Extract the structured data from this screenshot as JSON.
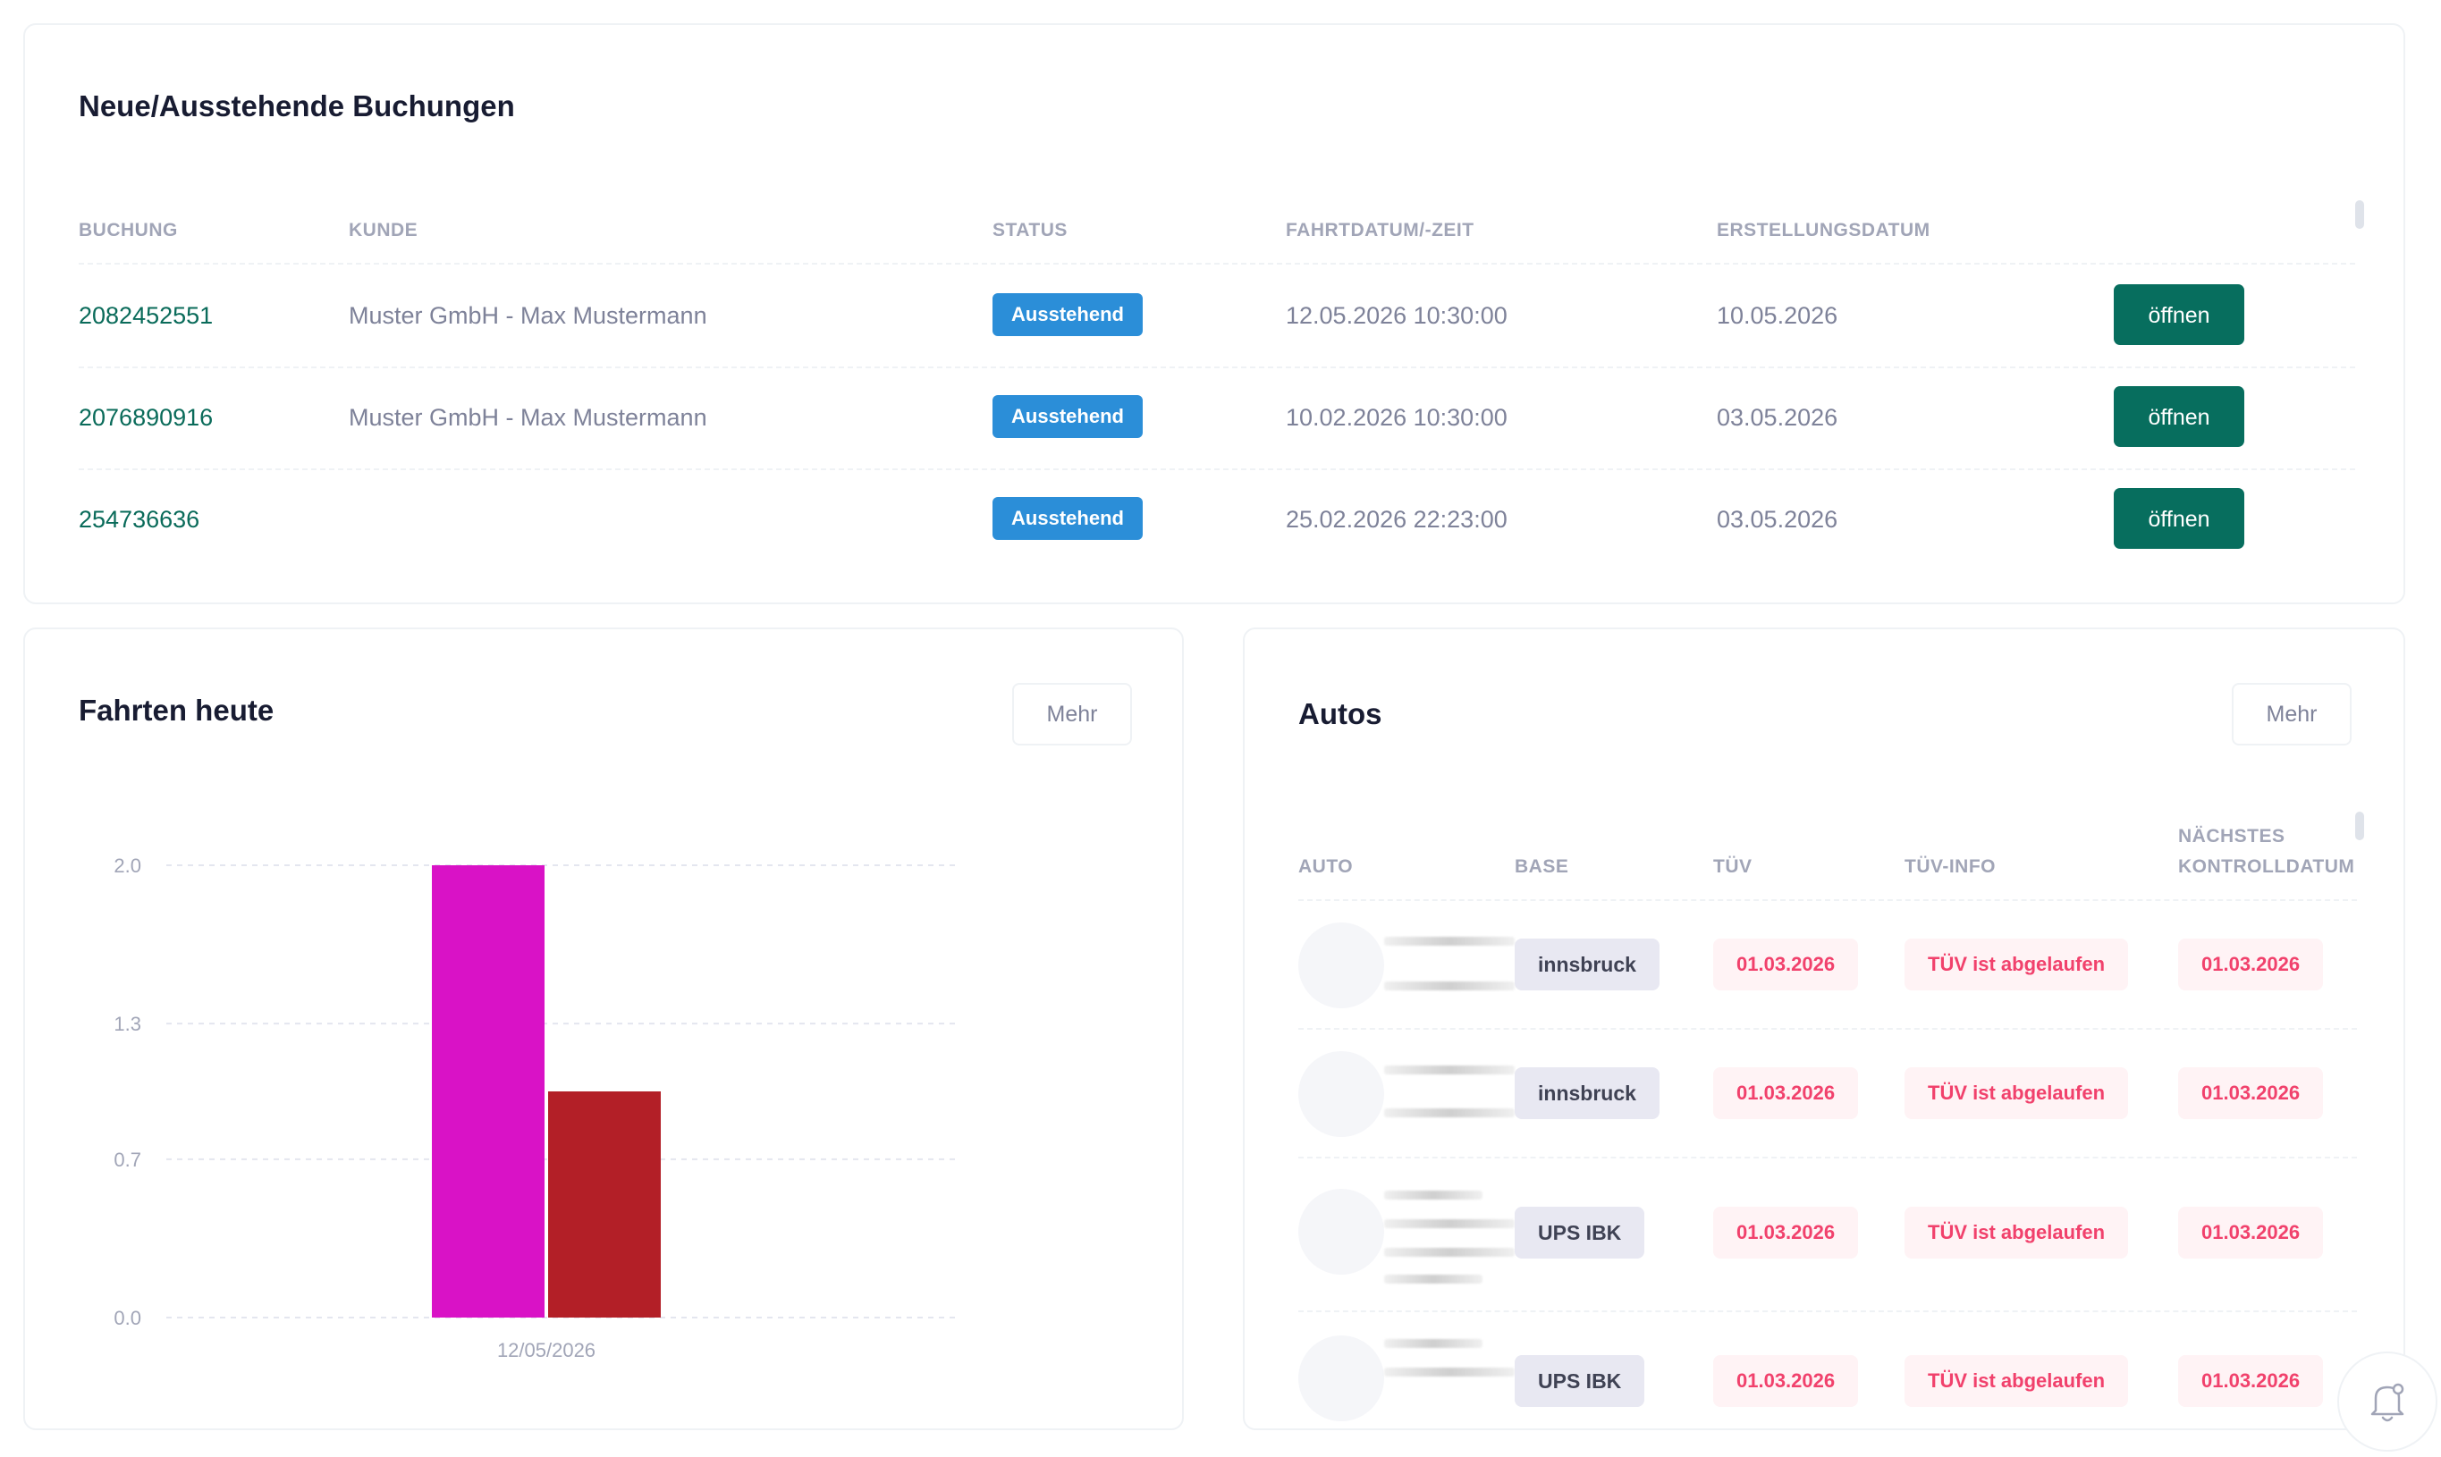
{
  "bookings": {
    "title": "Neue/Ausstehende Buchungen",
    "headers": [
      "BUCHUNG",
      "KUNDE",
      "STATUS",
      "FAHRTDATUM/-ZEIT",
      "ERSTELLUNGSDATUM"
    ],
    "rows": [
      {
        "id": "2082452551",
        "customer": "Muster GmbH - Max Mustermann",
        "status": "Ausstehend",
        "ride": "12.05.2026 10:30:00",
        "created": "10.05.2026",
        "action": "öffnen"
      },
      {
        "id": "2076890916",
        "customer": "Muster GmbH - Max Mustermann",
        "status": "Ausstehend",
        "ride": "10.02.2026 10:30:00",
        "created": "03.05.2026",
        "action": "öffnen"
      },
      {
        "id": "254736636",
        "customer": "",
        "status": "Ausstehend",
        "ride": "25.02.2026 22:23:00",
        "created": "03.05.2026",
        "action": "öffnen"
      }
    ]
  },
  "rides_today": {
    "title": "Fahrten heute",
    "more_label": "Mehr"
  },
  "chart_data": {
    "type": "bar",
    "categories": [
      "12/05/2026"
    ],
    "series": [
      {
        "values": [
          2.0
        ],
        "color": "#d912c6"
      },
      {
        "values": [
          1.0
        ],
        "color": "#b31f27"
      }
    ],
    "yticks": [
      "0.0",
      "0.7",
      "1.3",
      "2.0"
    ],
    "ylim": [
      0,
      2.0
    ],
    "grid": true
  },
  "cars": {
    "title": "Autos",
    "more_label": "Mehr",
    "headers": {
      "auto": "AUTO",
      "base": "BASE",
      "tuv": "TÜV",
      "tuv_info": "TÜV-INFO",
      "next_line1": "NÄCHSTES",
      "next_line2": "KONTROLLDATUM"
    },
    "rows": [
      {
        "base": "innsbruck",
        "tuv": "01.03.2026",
        "tuv_info": "TÜV ist abgelaufen",
        "next": "01.03.2026"
      },
      {
        "base": "innsbruck",
        "tuv": "01.03.2026",
        "tuv_info": "TÜV ist abgelaufen",
        "next": "01.03.2026"
      },
      {
        "base": "UPS IBK",
        "tuv": "01.03.2026",
        "tuv_info": "TÜV ist abgelaufen",
        "next": "01.03.2026"
      },
      {
        "base": "UPS IBK",
        "tuv": "01.03.2026",
        "tuv_info": "TÜV ist abgelaufen",
        "next": "01.03.2026"
      }
    ]
  },
  "colors": {
    "accent": "#076e5e",
    "badge_blue": "#2b8ed8",
    "danger": "#f1416c"
  },
  "icons": {
    "notification": "bell-icon"
  }
}
